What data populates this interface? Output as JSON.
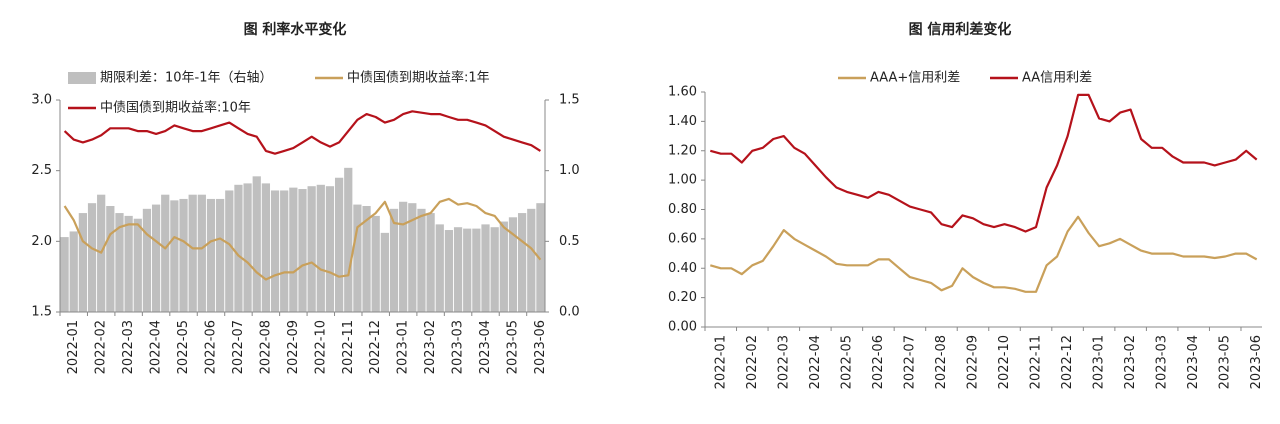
{
  "chart_data": [
    {
      "type": "combo",
      "title": "图 利率水平变化",
      "categories": [
        "2022-01",
        null,
        null,
        "2022-02",
        null,
        null,
        "2022-03",
        null,
        null,
        "2022-04",
        null,
        null,
        "2022-05",
        null,
        null,
        "2022-06",
        null,
        null,
        "2022-07",
        null,
        null,
        "2022-08",
        null,
        null,
        "2022-09",
        null,
        null,
        "2022-10",
        null,
        null,
        "2022-11",
        null,
        null,
        "2022-12",
        null,
        null,
        "2023-01",
        null,
        null,
        "2023-02",
        null,
        null,
        "2023-03",
        null,
        null,
        "2023-04",
        null,
        null,
        "2023-05",
        null,
        null,
        "2023-06",
        null
      ],
      "series": [
        {
          "name": "期限利差：10年-1年（右轴）",
          "type": "bar",
          "axis": "y2",
          "color": "#bfbfbf",
          "values": [
            0.53,
            0.57,
            0.7,
            0.77,
            0.83,
            0.75,
            0.7,
            0.68,
            0.66,
            0.73,
            0.76,
            0.83,
            0.79,
            0.8,
            0.83,
            0.83,
            0.8,
            0.8,
            0.86,
            0.9,
            0.91,
            0.96,
            0.91,
            0.86,
            0.86,
            0.88,
            0.87,
            0.89,
            0.9,
            0.89,
            0.95,
            1.02,
            0.76,
            0.75,
            0.68,
            0.56,
            0.73,
            0.78,
            0.77,
            0.73,
            0.7,
            0.62,
            0.58,
            0.6,
            0.59,
            0.59,
            0.62,
            0.6,
            0.64,
            0.67,
            0.7,
            0.73,
            0.77
          ]
        },
        {
          "name": "中债国债到期收益率:1年",
          "type": "line",
          "color": "#c9a05a",
          "values": [
            2.25,
            2.15,
            2.0,
            1.95,
            1.92,
            2.05,
            2.1,
            2.12,
            2.12,
            2.05,
            2.0,
            1.95,
            2.03,
            2.0,
            1.95,
            1.95,
            2.0,
            2.02,
            1.98,
            1.9,
            1.85,
            1.78,
            1.73,
            1.76,
            1.78,
            1.78,
            1.83,
            1.85,
            1.8,
            1.78,
            1.75,
            1.76,
            2.1,
            2.15,
            2.2,
            2.28,
            2.13,
            2.12,
            2.15,
            2.18,
            2.2,
            2.28,
            2.3,
            2.26,
            2.27,
            2.25,
            2.2,
            2.18,
            2.1,
            2.05,
            2.0,
            1.95,
            1.87
          ]
        },
        {
          "name": "中债国债到期收益率:10年",
          "type": "line",
          "color": "#b5121b",
          "values": [
            2.78,
            2.72,
            2.7,
            2.72,
            2.75,
            2.8,
            2.8,
            2.8,
            2.78,
            2.78,
            2.76,
            2.78,
            2.82,
            2.8,
            2.78,
            2.78,
            2.8,
            2.82,
            2.84,
            2.8,
            2.76,
            2.74,
            2.64,
            2.62,
            2.64,
            2.66,
            2.7,
            2.74,
            2.7,
            2.67,
            2.7,
            2.78,
            2.86,
            2.9,
            2.88,
            2.84,
            2.86,
            2.9,
            2.92,
            2.91,
            2.9,
            2.9,
            2.88,
            2.86,
            2.86,
            2.84,
            2.82,
            2.78,
            2.74,
            2.72,
            2.7,
            2.68,
            2.64
          ]
        }
      ],
      "ylim": [
        1.5,
        3
      ],
      "yticks": [
        {
          "value": 3,
          "label": "3.0"
        },
        2.5,
        {
          "value": 2,
          "label": "2.0"
        },
        1.5
      ],
      "y2lim": [
        0,
        1.5
      ],
      "y2ticks": [
        1.5,
        {
          "value": 1,
          "label": "1.0"
        },
        0.5,
        {
          "value": 0,
          "label": "0.0"
        }
      ]
    },
    {
      "type": "line",
      "title": "图 信用利差变化",
      "categories": [
        "2022-01",
        null,
        null,
        "2022-02",
        null,
        null,
        "2022-03",
        null,
        null,
        "2022-04",
        null,
        null,
        "2022-05",
        null,
        null,
        "2022-06",
        null,
        null,
        "2022-07",
        null,
        null,
        "2022-08",
        null,
        null,
        "2022-09",
        null,
        null,
        "2022-10",
        null,
        null,
        "2022-11",
        null,
        null,
        "2022-12",
        null,
        null,
        "2023-01",
        null,
        null,
        "2023-02",
        null,
        null,
        "2023-03",
        null,
        null,
        "2023-04",
        null,
        null,
        "2023-05",
        null,
        null,
        "2023-06",
        null
      ],
      "series": [
        {
          "name": "AAA+信用利差",
          "color": "#c9a05a",
          "values": [
            0.42,
            0.4,
            0.4,
            0.36,
            0.42,
            0.45,
            0.55,
            0.66,
            0.6,
            0.56,
            0.52,
            0.48,
            0.43,
            0.42,
            0.42,
            0.42,
            0.46,
            0.46,
            0.4,
            0.34,
            0.32,
            0.3,
            0.25,
            0.28,
            0.4,
            0.34,
            0.3,
            0.27,
            0.27,
            0.26,
            0.24,
            0.24,
            0.42,
            0.48,
            0.65,
            0.75,
            0.64,
            0.55,
            0.57,
            0.6,
            0.56,
            0.52,
            0.5,
            0.5,
            0.5,
            0.48,
            0.48,
            0.48,
            0.47,
            0.48,
            0.5,
            0.5,
            0.46
          ]
        },
        {
          "name": "AA信用利差",
          "color": "#b5121b",
          "values": [
            1.2,
            1.18,
            1.18,
            1.12,
            1.2,
            1.22,
            1.28,
            1.3,
            1.22,
            1.18,
            1.1,
            1.02,
            0.95,
            0.92,
            0.9,
            0.88,
            0.92,
            0.9,
            0.86,
            0.82,
            0.8,
            0.78,
            0.7,
            0.68,
            0.76,
            0.74,
            0.7,
            0.68,
            0.7,
            0.68,
            0.65,
            0.68,
            0.95,
            1.1,
            1.3,
            1.58,
            1.58,
            1.42,
            1.4,
            1.46,
            1.48,
            1.28,
            1.22,
            1.22,
            1.16,
            1.12,
            1.12,
            1.12,
            1.1,
            1.12,
            1.14,
            1.2,
            1.14
          ]
        }
      ],
      "ylim": [
        0,
        1.6
      ],
      "yticks": [
        {
          "value": 1.6,
          "label": "1.60"
        },
        {
          "value": 1.4,
          "label": "1.40"
        },
        {
          "value": 1.2,
          "label": "1.20"
        },
        {
          "value": 1,
          "label": "1.00"
        },
        {
          "value": 0.8,
          "label": "0.80"
        },
        {
          "value": 0.6,
          "label": "0.60"
        },
        {
          "value": 0.4,
          "label": "0.40"
        },
        {
          "value": 0.2,
          "label": "0.20"
        },
        {
          "value": 0,
          "label": "0.00"
        }
      ]
    }
  ]
}
